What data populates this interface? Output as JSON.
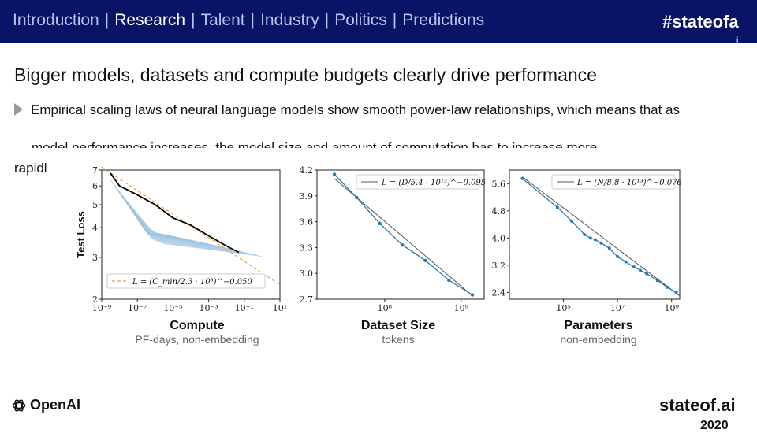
{
  "nav": {
    "items": [
      {
        "label": "Introduction",
        "active": false
      },
      {
        "label": "Research",
        "active": true
      },
      {
        "label": "Talent",
        "active": false
      },
      {
        "label": "Industry",
        "active": false
      },
      {
        "label": "Politics",
        "active": false
      },
      {
        "label": "Predictions",
        "active": false
      }
    ],
    "separator": "|",
    "hashtag": "#stateofa",
    "hashtag_overflow": "i"
  },
  "slide": {
    "title": "Bigger models, datasets and compute budgets clearly drive performance",
    "bullet_line1": "Empirical scaling laws of neural language models show smooth power-law relationships, which means that as",
    "bullet_line3": "model performance increases, the model size and amount of computation has to increase more",
    "bullet_line4_start": "rapidl"
  },
  "footer": {
    "logo_text": "OpenAI",
    "site": "stateof.ai",
    "year": "2020"
  },
  "colors": {
    "topbar": "#0a1466",
    "nav_inactive": "#b8c2f0",
    "nav_active": "#ffffff",
    "series": "#2a7ab0",
    "fit": "#555555",
    "compute_fit": "#f0a030"
  },
  "chart_data": [
    {
      "type": "line",
      "title": "Compute",
      "subtitle": "PF-days, non-embedding",
      "ylabel": "Test Loss",
      "xscale": "log",
      "yscale": "log",
      "xlim": [
        1e-09,
        10
      ],
      "ylim": [
        2,
        7
      ],
      "x_ticks": [
        "10⁻⁹",
        "10⁻⁷",
        "10⁻⁵",
        "10⁻³",
        "10⁻¹",
        "10¹"
      ],
      "y_ticks": [
        "2",
        "3",
        "4",
        "5",
        "6",
        "7"
      ],
      "legend": "L = (C_min/2.3 · 10⁸)^−0.050",
      "legend_position": "lower-left",
      "frontier": {
        "x": [
          3e-09,
          1e-08,
          1e-07,
          1e-06,
          1e-05,
          0.0001,
          0.001,
          0.01,
          0.05
        ],
        "y": [
          6.8,
          6.0,
          5.5,
          5.0,
          4.4,
          4.1,
          3.7,
          3.35,
          3.15
        ]
      },
      "fit": {
        "x": [
          1e-09,
          10
        ],
        "y": [
          7.2,
          2.3
        ]
      },
      "runs_count": 24
    },
    {
      "type": "line",
      "title": "Dataset Size",
      "subtitle": "tokens",
      "xscale": "log",
      "xlim": [
        13000000.0,
        2000000000.0
      ],
      "ylim": [
        2.7,
        4.2
      ],
      "x_ticks": [
        "10⁸",
        "10⁹"
      ],
      "y_ticks": [
        "2.7",
        "3.0",
        "3.3",
        "3.6",
        "3.9",
        "4.2"
      ],
      "legend": "L = (D/5.4 · 10¹³)^−0.095",
      "legend_position": "top-right",
      "series": [
        {
          "x": [
            22000000.0,
            43000000.0,
            86000000.0,
            170000000.0,
            340000000.0,
            690000000.0,
            1400000000.0
          ],
          "y": [
            4.15,
            3.88,
            3.58,
            3.33,
            3.15,
            2.92,
            2.75
          ]
        }
      ],
      "fit": {
        "x": [
          22000000.0,
          1400000000.0
        ],
        "y": [
          4.1,
          2.74
        ]
      }
    },
    {
      "type": "line",
      "title": "Parameters",
      "subtitle": "non-embedding",
      "xscale": "log",
      "xlim": [
        1000,
        2000000000.0
      ],
      "ylim": [
        2.2,
        6
      ],
      "x_ticks": [
        "10⁵",
        "10⁷",
        "10⁹"
      ],
      "y_ticks": [
        "2.4",
        "3.2",
        "4.0",
        "4.8",
        "5.6"
      ],
      "legend": "L = (N/8.8 · 10¹³)^−0.076",
      "legend_position": "top-right",
      "series": [
        {
          "x": [
            3000.0,
            60000.0,
            200000.0,
            600000.0,
            1000000.0,
            1500000.0,
            2500000.0,
            5000000.0,
            10000000.0,
            20000000.0,
            40000000.0,
            70000000.0,
            120000000.0,
            300000000.0,
            700000000.0,
            1500000000.0
          ],
          "y": [
            5.75,
            4.9,
            4.5,
            4.1,
            4.0,
            3.95,
            3.85,
            3.7,
            3.45,
            3.3,
            3.15,
            3.05,
            2.95,
            2.75,
            2.55,
            2.4
          ]
        }
      ],
      "fit": {
        "x": [
          3000.0,
          2000000000.0
        ],
        "y": [
          5.8,
          2.3
        ]
      }
    }
  ]
}
